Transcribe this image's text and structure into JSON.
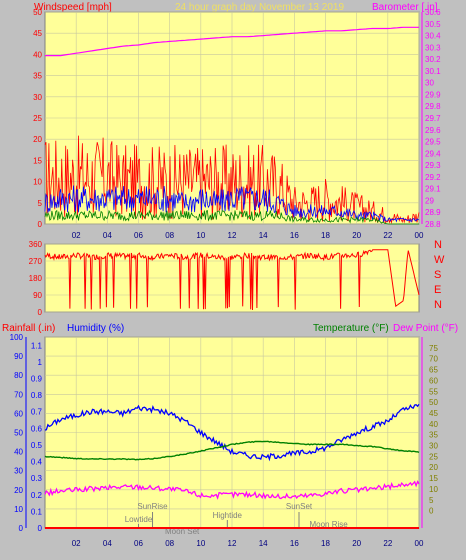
{
  "header": {
    "windspeed_label": "Windspeed [mph]",
    "title": "24 hour graph day   November 13 2019",
    "barometer_label": "Barometer [.in]"
  },
  "colors": {
    "background": "#c0c0c0",
    "plot_bg": "#ffff99",
    "red": "#ff0000",
    "blue": "#0000ff",
    "green": "#008000",
    "magenta": "#ff00ff",
    "olive": "#808000",
    "gray": "#808080",
    "title_yellow": "#f0e060"
  },
  "chart_data": [
    {
      "name": "wind-barometer",
      "type": "line",
      "x_ticks": [
        "02",
        "04",
        "06",
        "08",
        "10",
        "12",
        "14",
        "16",
        "18",
        "20",
        "22",
        "00"
      ],
      "xlim": [
        0,
        24
      ],
      "ylabel_left": "Windspeed [mph]",
      "ylabel_right": "Barometer [.in]",
      "ylim_left": [
        0,
        50
      ],
      "yticks_left": [
        0,
        5,
        10,
        15,
        20,
        25,
        30,
        35,
        40,
        45,
        50
      ],
      "ylim_right": [
        28.8,
        30.6
      ],
      "yticks_right": [
        "28.8",
        "28.9",
        "29",
        "29.1",
        "29.2",
        "29.3",
        "29.4",
        "29.5",
        "29.6",
        "29.7",
        "29.8",
        "29.9",
        "30",
        "30.1",
        "30.2",
        "30.3",
        "30.4",
        "30.5",
        "30.6"
      ],
      "grid": true,
      "series": [
        {
          "color": "red",
          "axis": "left",
          "x": [
            0,
            1,
            2,
            3,
            4,
            5,
            6,
            7,
            8,
            9,
            10,
            11,
            12,
            13,
            14,
            15,
            16,
            17,
            18,
            19,
            20,
            21,
            22,
            23,
            24
          ],
          "values": [
            11,
            11,
            11,
            11,
            11,
            10,
            10,
            10,
            10,
            10,
            10,
            10,
            10,
            10,
            10,
            9,
            5,
            5,
            6,
            5,
            4,
            3,
            2,
            1,
            2
          ]
        },
        {
          "color": "blue",
          "axis": "left",
          "x": [
            0,
            1,
            2,
            3,
            4,
            5,
            6,
            7,
            8,
            9,
            10,
            11,
            12,
            13,
            14,
            15,
            16,
            17,
            18,
            19,
            20,
            21,
            22,
            23,
            24
          ],
          "values": [
            5,
            6,
            6,
            6,
            6,
            6,
            6,
            6,
            6,
            5,
            6,
            5,
            6,
            6,
            6,
            5,
            3,
            3,
            3,
            3,
            2,
            2,
            1,
            1,
            1
          ]
        },
        {
          "color": "green",
          "axis": "left",
          "x": [
            0,
            1,
            2,
            3,
            4,
            5,
            6,
            7,
            8,
            9,
            10,
            11,
            12,
            13,
            14,
            15,
            16,
            17,
            18,
            19,
            20,
            21,
            22,
            23,
            24
          ],
          "values": [
            2,
            2,
            2,
            2,
            2,
            2,
            2,
            2,
            2,
            2,
            2,
            2,
            2,
            2,
            2,
            2,
            1,
            1,
            1,
            1,
            1,
            1,
            0,
            0,
            0
          ]
        },
        {
          "color": "magenta",
          "axis": "right",
          "x": [
            0,
            1,
            2,
            3,
            4,
            5,
            6,
            7,
            8,
            9,
            10,
            11,
            12,
            13,
            14,
            15,
            16,
            17,
            18,
            19,
            20,
            21,
            22,
            23,
            24
          ],
          "values": [
            30.23,
            30.23,
            30.25,
            30.27,
            30.29,
            30.31,
            30.32,
            30.34,
            30.35,
            30.36,
            30.37,
            30.38,
            30.39,
            30.39,
            30.4,
            30.41,
            30.42,
            30.43,
            30.44,
            30.44,
            30.45,
            30.46,
            30.46,
            30.47,
            30.47
          ]
        }
      ]
    },
    {
      "name": "wind-direction",
      "type": "line",
      "x_ticks": [
        "02",
        "04",
        "06",
        "08",
        "10",
        "12",
        "14",
        "16",
        "18",
        "20",
        "22",
        "00"
      ],
      "xlim": [
        0,
        24
      ],
      "ylim": [
        0,
        360
      ],
      "yticks": [
        0,
        90,
        180,
        270,
        360
      ],
      "right_labels": [
        "N",
        "W",
        "S",
        "E",
        "N"
      ],
      "series": [
        {
          "color": "red",
          "x": [
            0,
            1,
            2,
            3,
            4,
            5,
            6,
            7,
            8,
            9,
            10,
            11,
            12,
            13,
            14,
            15,
            16,
            17,
            18,
            19,
            20,
            21,
            22,
            22.5,
            23,
            23.3,
            24
          ],
          "values": [
            300,
            290,
            300,
            290,
            300,
            295,
            300,
            290,
            300,
            290,
            300,
            290,
            290,
            300,
            290,
            290,
            290,
            300,
            290,
            300,
            300,
            330,
            330,
            30,
            60,
            330,
            90
          ]
        }
      ]
    },
    {
      "name": "rain-humidity-temperature",
      "type": "line",
      "x_ticks": [
        "02",
        "04",
        "06",
        "08",
        "10",
        "12",
        "14",
        "16",
        "18",
        "20",
        "22",
        "00"
      ],
      "xlim": [
        0,
        24
      ],
      "labels": {
        "rainfall": "Rainfall (.in)",
        "humidity": "Humidity (%)",
        "temperature": "Temperature (°F)",
        "dewpoint": "Dew Point (°F)"
      },
      "humidity_ticks": [
        0,
        10,
        20,
        30,
        40,
        50,
        60,
        70,
        80,
        90,
        100
      ],
      "rain_ticks": [
        "0",
        "0.1",
        "0.2",
        "0.3",
        "0.4",
        "0.5",
        "0.6",
        "0.7",
        "0.8",
        "0.9",
        "1",
        "1.1"
      ],
      "temp_ticks": [
        0,
        5,
        10,
        15,
        20,
        25,
        30,
        35,
        40,
        45,
        50,
        55,
        60,
        65,
        70,
        75
      ],
      "temp_ylim": [
        -8,
        80
      ],
      "annotations": [
        "SunRise",
        "Lowtide",
        "Moon Set",
        "Hightide",
        "SunSet",
        "Moon Rise"
      ],
      "series": [
        {
          "name": "Humidity (%)",
          "color": "blue",
          "scale": "humidity",
          "x": [
            0,
            1,
            2,
            3,
            4,
            5,
            6,
            7,
            8,
            9,
            10,
            11,
            12,
            13,
            14,
            15,
            16,
            17,
            18,
            19,
            20,
            21,
            22,
            23,
            24
          ],
          "values": [
            52,
            57,
            59,
            61,
            61,
            60,
            63,
            62,
            60,
            56,
            50,
            45,
            40,
            38,
            37,
            38,
            39,
            40,
            42,
            46,
            50,
            53,
            56,
            62,
            64
          ]
        },
        {
          "name": "Temperature (°F)",
          "color": "green",
          "scale": "temp",
          "x": [
            0,
            1,
            2,
            3,
            4,
            5,
            6,
            7,
            8,
            9,
            10,
            11,
            12,
            13,
            14,
            15,
            16,
            17,
            18,
            19,
            20,
            21,
            22,
            23,
            24
          ],
          "values": [
            25,
            24.5,
            24,
            23.8,
            23.8,
            23.8,
            23.5,
            24,
            25,
            26,
            27.5,
            29,
            30.5,
            31.5,
            32,
            31.5,
            31,
            30.5,
            30.5,
            30.5,
            30,
            29.5,
            28.5,
            27.5,
            27
          ]
        },
        {
          "name": "Dew Point (°F)",
          "color": "magenta",
          "scale": "temp",
          "x": [
            0,
            1,
            2,
            3,
            4,
            5,
            6,
            7,
            8,
            9,
            10,
            11,
            12,
            13,
            14,
            15,
            16,
            17,
            18,
            19,
            20,
            21,
            22,
            23,
            24
          ],
          "values": [
            8,
            9,
            9.5,
            10,
            10.5,
            11,
            11,
            10.5,
            10,
            9,
            7,
            7,
            7.5,
            7.5,
            7,
            6.5,
            6.5,
            7,
            8,
            9,
            9.5,
            10,
            11,
            12,
            12.5
          ]
        },
        {
          "name": "Rainfall (.in)",
          "color": "red",
          "scale": "rain",
          "x": [
            0,
            24
          ],
          "values": [
            0,
            0
          ]
        }
      ]
    }
  ]
}
